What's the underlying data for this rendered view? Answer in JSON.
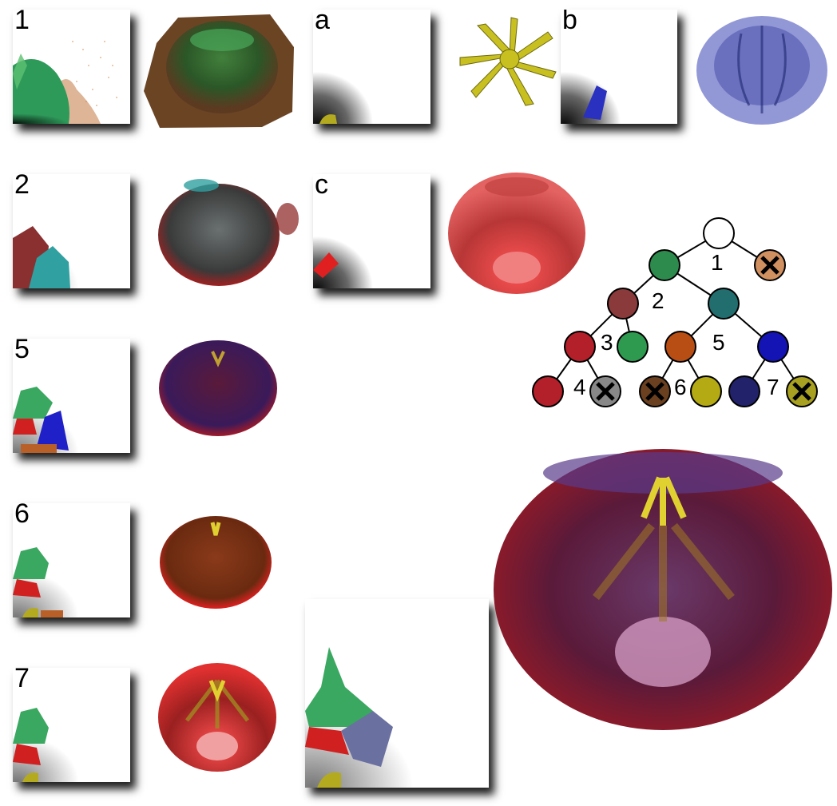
{
  "panels": {
    "p1": {
      "label": "1"
    },
    "pa": {
      "label": "a"
    },
    "pb": {
      "label": "b"
    },
    "p2": {
      "label": "2"
    },
    "pc": {
      "label": "c"
    },
    "p5": {
      "label": "5"
    },
    "p6": {
      "label": "6"
    },
    "p7": {
      "label": "7"
    },
    "pbig": {
      "label": ""
    }
  },
  "tree": {
    "nodes": [
      {
        "id": "n1",
        "label": "1",
        "color": "#ffffff",
        "excluded": false
      },
      {
        "id": "n2",
        "label": "2",
        "color": "#2e8b4e",
        "excluded": false
      },
      {
        "id": "n2x",
        "label": "",
        "color": "#d09060",
        "excluded": true
      },
      {
        "id": "n3",
        "label": "3",
        "color": "#8a3a3a",
        "excluded": false
      },
      {
        "id": "n5",
        "label": "5",
        "color": "#226e6e",
        "excluded": false
      },
      {
        "id": "n4",
        "label": "4",
        "color": "#b3202a",
        "excluded": false
      },
      {
        "id": "n3g",
        "label": "",
        "color": "#2e9a50",
        "excluded": false
      },
      {
        "id": "n6",
        "label": "6",
        "color": "#b84e14",
        "excluded": false
      },
      {
        "id": "n7",
        "label": "7",
        "color": "#1414b4",
        "excluded": false
      },
      {
        "id": "n4r",
        "label": "",
        "color": "#b3202a",
        "excluded": false
      },
      {
        "id": "n4x",
        "label": "",
        "color": "#888888",
        "excluded": true
      },
      {
        "id": "n6x",
        "label": "",
        "color": "#6a4020",
        "excluded": true
      },
      {
        "id": "n6y",
        "label": "",
        "color": "#b4aa14",
        "excluded": false
      },
      {
        "id": "n7b",
        "label": "",
        "color": "#22226a",
        "excluded": false
      },
      {
        "id": "n7x",
        "label": "",
        "color": "#a8a020",
        "excluded": true
      }
    ]
  }
}
